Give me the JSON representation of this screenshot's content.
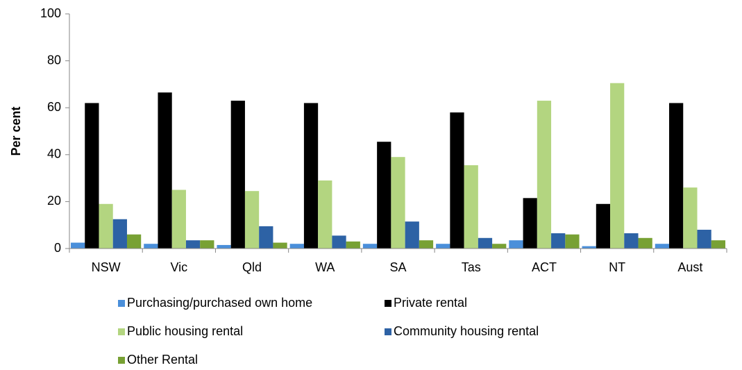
{
  "chart_data": {
    "type": "bar",
    "categories": [
      "NSW",
      "Vic",
      "Qld",
      "WA",
      "SA",
      "Tas",
      "ACT",
      "NT",
      "Aust"
    ],
    "series": [
      {
        "name": "Purchasing/purchased own home",
        "color": "#4a8fda",
        "values": [
          2.5,
          2,
          1.5,
          2,
          2,
          2,
          3.5,
          1,
          2
        ]
      },
      {
        "name": "Private rental",
        "color": "#000000",
        "values": [
          62,
          66.5,
          63,
          62,
          45.5,
          58,
          21.5,
          19,
          62
        ]
      },
      {
        "name": "Public housing rental",
        "color": "#b3d580",
        "values": [
          19,
          25,
          24.5,
          29,
          39,
          35.5,
          63,
          70.5,
          26
        ]
      },
      {
        "name": "Community housing rental",
        "color": "#2d62a5",
        "values": [
          12.5,
          3.5,
          9.5,
          5.5,
          11.5,
          4.5,
          6.5,
          6.5,
          8
        ]
      },
      {
        "name": "Other Rental",
        "color": "#78a134",
        "values": [
          6,
          3.5,
          2.5,
          3,
          3.5,
          2,
          6,
          4.5,
          3.5
        ]
      }
    ],
    "ylabel": "Per cent",
    "ylim": [
      0,
      100
    ],
    "yticks": [
      0,
      20,
      40,
      60,
      80,
      100
    ],
    "grid": false
  }
}
